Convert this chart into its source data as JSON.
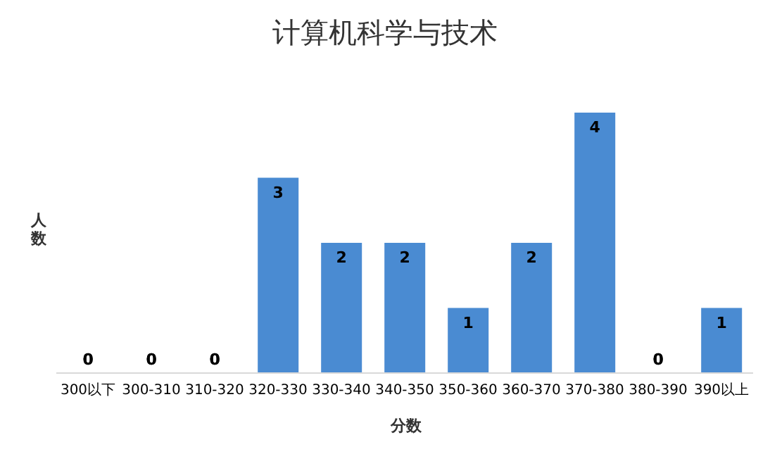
{
  "chart_data": {
    "type": "bar",
    "title": "计算机科学与技术",
    "xlabel": "分数",
    "ylabel": "人数",
    "categories": [
      "300以下",
      "300-310",
      "310-320",
      "320-330",
      "330-340",
      "340-350",
      "350-360",
      "360-370",
      "370-380",
      "380-390",
      "390以上"
    ],
    "values": [
      0,
      0,
      0,
      3,
      2,
      2,
      1,
      2,
      4,
      0,
      1
    ],
    "color": "#4a8bd2",
    "data_labels": true,
    "grid": false,
    "legend": false
  }
}
